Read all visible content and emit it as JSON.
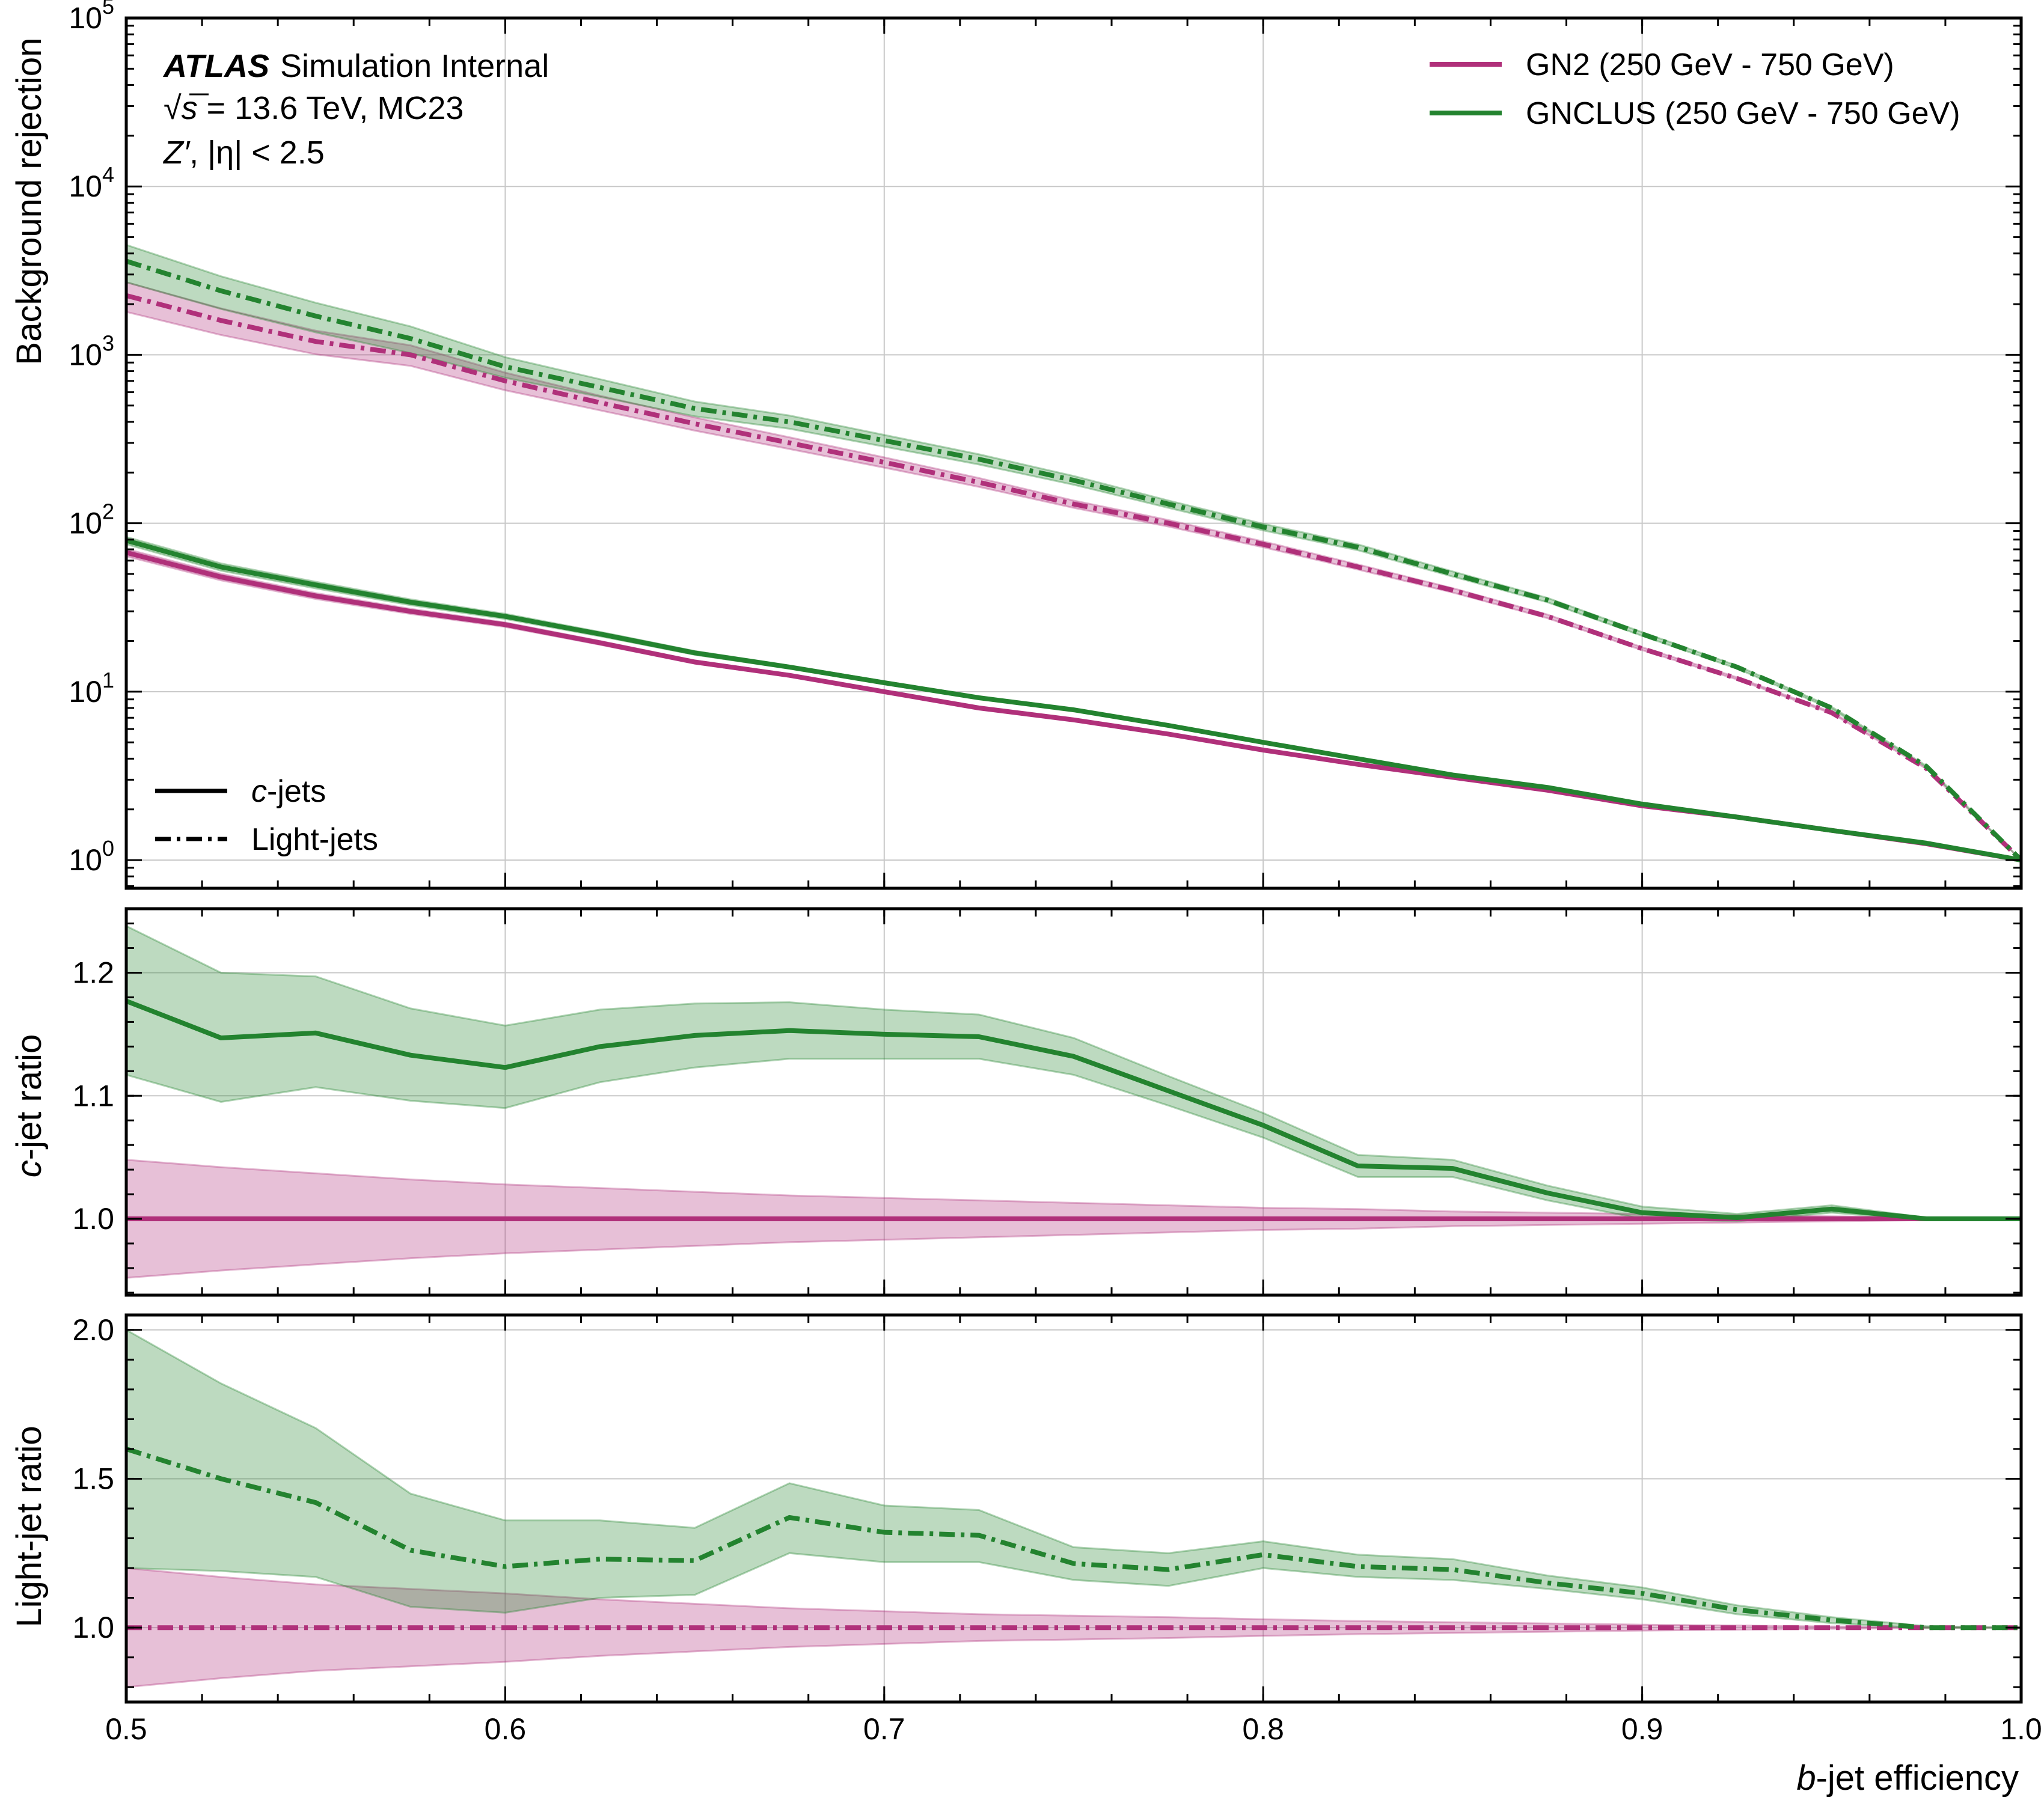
{
  "chart_data": [
    {
      "panel": "main",
      "type": "line",
      "yscale": "log",
      "xlim": [
        0.5,
        1.0
      ],
      "ylim": [
        0.68,
        100000
      ],
      "ylabel": "Background rejection",
      "yticks": [
        {
          "value": 1,
          "base": "10",
          "exp": "0"
        },
        {
          "value": 10,
          "base": "10",
          "exp": "1"
        },
        {
          "value": 100,
          "base": "10",
          "exp": "2"
        },
        {
          "value": 1000,
          "base": "10",
          "exp": "3"
        },
        {
          "value": 10000,
          "base": "10",
          "exp": "4"
        },
        {
          "value": 100000,
          "base": "10",
          "exp": "5"
        }
      ],
      "grid": true,
      "annotations": {
        "atlas": "ATLAS",
        "status": "Simulation Internal",
        "energy_sqrt": "√",
        "energy_s": "s",
        "energy_rest": " = 13.6 TeV, MC23",
        "sample_z": "Z′",
        "sample_rest": ", |η| < 2.5"
      },
      "legend_taggers": [
        {
          "label": "GN2 (250 GeV - 750 GeV)",
          "color": "#b0307a"
        },
        {
          "label": "GNCLUS (250 GeV - 750 GeV)",
          "color": "#23832f"
        }
      ],
      "legend_flavours": [
        {
          "label_italic": "c",
          "label_rest": "-jets",
          "style": "solid"
        },
        {
          "label_italic": "",
          "label_rest": "Light-jets",
          "style": "dashdot"
        }
      ],
      "x": [
        0.5,
        0.525,
        0.55,
        0.575,
        0.6,
        0.625,
        0.65,
        0.675,
        0.7,
        0.725,
        0.75,
        0.775,
        0.8,
        0.825,
        0.85,
        0.875,
        0.9,
        0.925,
        0.95,
        0.975,
        1.0
      ],
      "series": [
        {
          "name": "GN2 (250 GeV - 750 GeV)",
          "flavour": "c-jets",
          "color": "#b0307a",
          "style": "solid",
          "values": [
            67,
            48,
            37,
            30,
            25,
            19.5,
            15,
            12.5,
            10,
            8,
            6.8,
            5.6,
            4.5,
            3.7,
            3.1,
            2.6,
            2.1,
            1.8,
            1.5,
            1.25,
            1.0
          ],
          "band_rel": [
            0.05,
            0.045,
            0.04,
            0.035,
            0.03,
            0.026,
            0.022,
            0.019,
            0.016,
            0.013,
            0.011,
            0.009,
            0.008,
            0.006,
            0.005,
            0.004,
            0.003,
            0.002,
            0.002,
            0.001,
            0.0
          ]
        },
        {
          "name": "GNCLUS (250 GeV - 750 GeV)",
          "flavour": "c-jets",
          "color": "#23832f",
          "style": "solid",
          "values": [
            79,
            55,
            43,
            34,
            28,
            22,
            17,
            14,
            11.3,
            9.2,
            7.8,
            6.3,
            5.0,
            4.0,
            3.2,
            2.7,
            2.15,
            1.8,
            1.5,
            1.26,
            1.0
          ],
          "band_rel": [
            0.05,
            0.05,
            0.045,
            0.04,
            0.035,
            0.03,
            0.026,
            0.022,
            0.02,
            0.017,
            0.015,
            0.013,
            0.011,
            0.009,
            0.007,
            0.006,
            0.005,
            0.004,
            0.003,
            0.002,
            0.0
          ]
        },
        {
          "name": "GN2 (250 GeV - 750 GeV)",
          "flavour": "Light-jets",
          "color": "#b0307a",
          "style": "dashdot",
          "values": [
            2250,
            1600,
            1200,
            1000,
            700,
            520,
            390,
            300,
            230,
            175,
            130,
            100,
            75,
            55,
            40,
            28,
            18,
            12,
            7.5,
            3.5,
            1.0
          ],
          "band_rel": [
            0.2,
            0.18,
            0.16,
            0.14,
            0.12,
            0.1,
            0.09,
            0.08,
            0.07,
            0.06,
            0.05,
            0.045,
            0.04,
            0.035,
            0.03,
            0.025,
            0.02,
            0.015,
            0.01,
            0.005,
            0.0
          ]
        },
        {
          "name": "GNCLUS (250 GeV - 750 GeV)",
          "flavour": "Light-jets",
          "color": "#23832f",
          "style": "dashdot",
          "values": [
            3600,
            2400,
            1700,
            1250,
            850,
            640,
            480,
            400,
            310,
            240,
            180,
            130,
            95,
            72,
            50,
            35,
            22,
            14,
            8,
            3.6,
            1.0
          ],
          "band_rel": [
            0.25,
            0.22,
            0.2,
            0.18,
            0.14,
            0.12,
            0.1,
            0.09,
            0.08,
            0.07,
            0.06,
            0.05,
            0.045,
            0.04,
            0.035,
            0.03,
            0.025,
            0.02,
            0.015,
            0.008,
            0.0
          ]
        }
      ]
    },
    {
      "panel": "c-ratio",
      "type": "line",
      "xlim": [
        0.5,
        1.0
      ],
      "ylim": [
        0.938,
        1.252
      ],
      "ylabel_italic": "c",
      "ylabel_rest": "-jet ratio",
      "yticks": [
        "1.0",
        "1.1",
        "1.2"
      ],
      "grid": true,
      "x": [
        0.5,
        0.525,
        0.55,
        0.575,
        0.6,
        0.625,
        0.65,
        0.675,
        0.7,
        0.725,
        0.75,
        0.775,
        0.8,
        0.825,
        0.85,
        0.875,
        0.9,
        0.925,
        0.95,
        0.975,
        1.0
      ],
      "series": [
        {
          "name": "GN2 (250 GeV - 750 GeV)",
          "color": "#b0307a",
          "style": "solid",
          "values": [
            1.0,
            1.0,
            1.0,
            1.0,
            1.0,
            1.0,
            1.0,
            1.0,
            1.0,
            1.0,
            1.0,
            1.0,
            1.0,
            1.0,
            1.0,
            1.0,
            1.0,
            1.0,
            1.0,
            1.0,
            1.0
          ],
          "lower": [
            0.952,
            0.958,
            0.963,
            0.968,
            0.972,
            0.975,
            0.978,
            0.981,
            0.983,
            0.985,
            0.987,
            0.989,
            0.991,
            0.992,
            0.994,
            0.995,
            0.996,
            0.997,
            0.998,
            0.999,
            1.0
          ],
          "upper": [
            1.048,
            1.042,
            1.037,
            1.032,
            1.028,
            1.025,
            1.022,
            1.019,
            1.017,
            1.015,
            1.013,
            1.011,
            1.009,
            1.008,
            1.006,
            1.005,
            1.004,
            1.003,
            1.002,
            1.001,
            1.0
          ]
        },
        {
          "name": "GNCLUS (250 GeV - 750 GeV)",
          "color": "#23832f",
          "style": "solid",
          "values": [
            1.177,
            1.147,
            1.151,
            1.133,
            1.123,
            1.14,
            1.149,
            1.153,
            1.15,
            1.148,
            1.132,
            1.104,
            1.076,
            1.043,
            1.041,
            1.021,
            1.005,
            1.001,
            1.008,
            1.0,
            1.0
          ],
          "lower": [
            1.117,
            1.095,
            1.107,
            1.096,
            1.09,
            1.111,
            1.123,
            1.13,
            1.13,
            1.13,
            1.117,
            1.092,
            1.066,
            1.034,
            1.034,
            1.015,
            1.0,
            0.998,
            1.005,
            0.999,
            1.0
          ],
          "upper": [
            1.238,
            1.2,
            1.197,
            1.171,
            1.157,
            1.17,
            1.175,
            1.176,
            1.17,
            1.166,
            1.147,
            1.116,
            1.086,
            1.052,
            1.048,
            1.027,
            1.01,
            1.004,
            1.011,
            1.001,
            1.0
          ]
        }
      ]
    },
    {
      "panel": "light-ratio",
      "type": "line",
      "xlim": [
        0.5,
        1.0
      ],
      "ylim": [
        0.75,
        2.05
      ],
      "ylabel": "Light-jet ratio",
      "xlabel_italic": "b",
      "xlabel_rest": "-jet efficiency",
      "yticks": [
        "1.0",
        "1.5",
        "2.0"
      ],
      "xticks": [
        "0.5",
        "0.6",
        "0.7",
        "0.8",
        "0.9",
        "1.0"
      ],
      "grid": true,
      "x": [
        0.5,
        0.525,
        0.55,
        0.575,
        0.6,
        0.625,
        0.65,
        0.675,
        0.7,
        0.725,
        0.75,
        0.775,
        0.8,
        0.825,
        0.85,
        0.875,
        0.9,
        0.925,
        0.95,
        0.975,
        1.0
      ],
      "series": [
        {
          "name": "GN2 (250 GeV - 750 GeV)",
          "color": "#b0307a",
          "style": "dashdot",
          "values": [
            1.0,
            1.0,
            1.0,
            1.0,
            1.0,
            1.0,
            1.0,
            1.0,
            1.0,
            1.0,
            1.0,
            1.0,
            1.0,
            1.0,
            1.0,
            1.0,
            1.0,
            1.0,
            1.0,
            1.0,
            1.0
          ],
          "lower": [
            0.8,
            0.83,
            0.855,
            0.87,
            0.885,
            0.905,
            0.92,
            0.935,
            0.945,
            0.955,
            0.96,
            0.965,
            0.972,
            0.978,
            0.982,
            0.986,
            0.99,
            0.993,
            0.996,
            0.998,
            1.0
          ],
          "upper": [
            1.2,
            1.17,
            1.145,
            1.13,
            1.115,
            1.095,
            1.08,
            1.065,
            1.055,
            1.045,
            1.04,
            1.035,
            1.028,
            1.022,
            1.018,
            1.014,
            1.01,
            1.007,
            1.004,
            1.002,
            1.0
          ]
        },
        {
          "name": "GNCLUS (250 GeV - 750 GeV)",
          "color": "#23832f",
          "style": "dashdot",
          "values": [
            1.6,
            1.5,
            1.42,
            1.26,
            1.205,
            1.23,
            1.225,
            1.37,
            1.32,
            1.31,
            1.215,
            1.195,
            1.245,
            1.205,
            1.195,
            1.15,
            1.115,
            1.06,
            1.025,
            1.0,
            1.0
          ],
          "lower": [
            1.2,
            1.19,
            1.17,
            1.07,
            1.05,
            1.1,
            1.11,
            1.25,
            1.22,
            1.22,
            1.16,
            1.14,
            1.2,
            1.17,
            1.16,
            1.13,
            1.095,
            1.045,
            1.015,
            0.998,
            1.0
          ],
          "upper": [
            2.0,
            1.82,
            1.67,
            1.45,
            1.36,
            1.36,
            1.335,
            1.485,
            1.41,
            1.395,
            1.27,
            1.25,
            1.29,
            1.245,
            1.23,
            1.175,
            1.135,
            1.075,
            1.035,
            1.005,
            1.0
          ]
        }
      ]
    }
  ]
}
